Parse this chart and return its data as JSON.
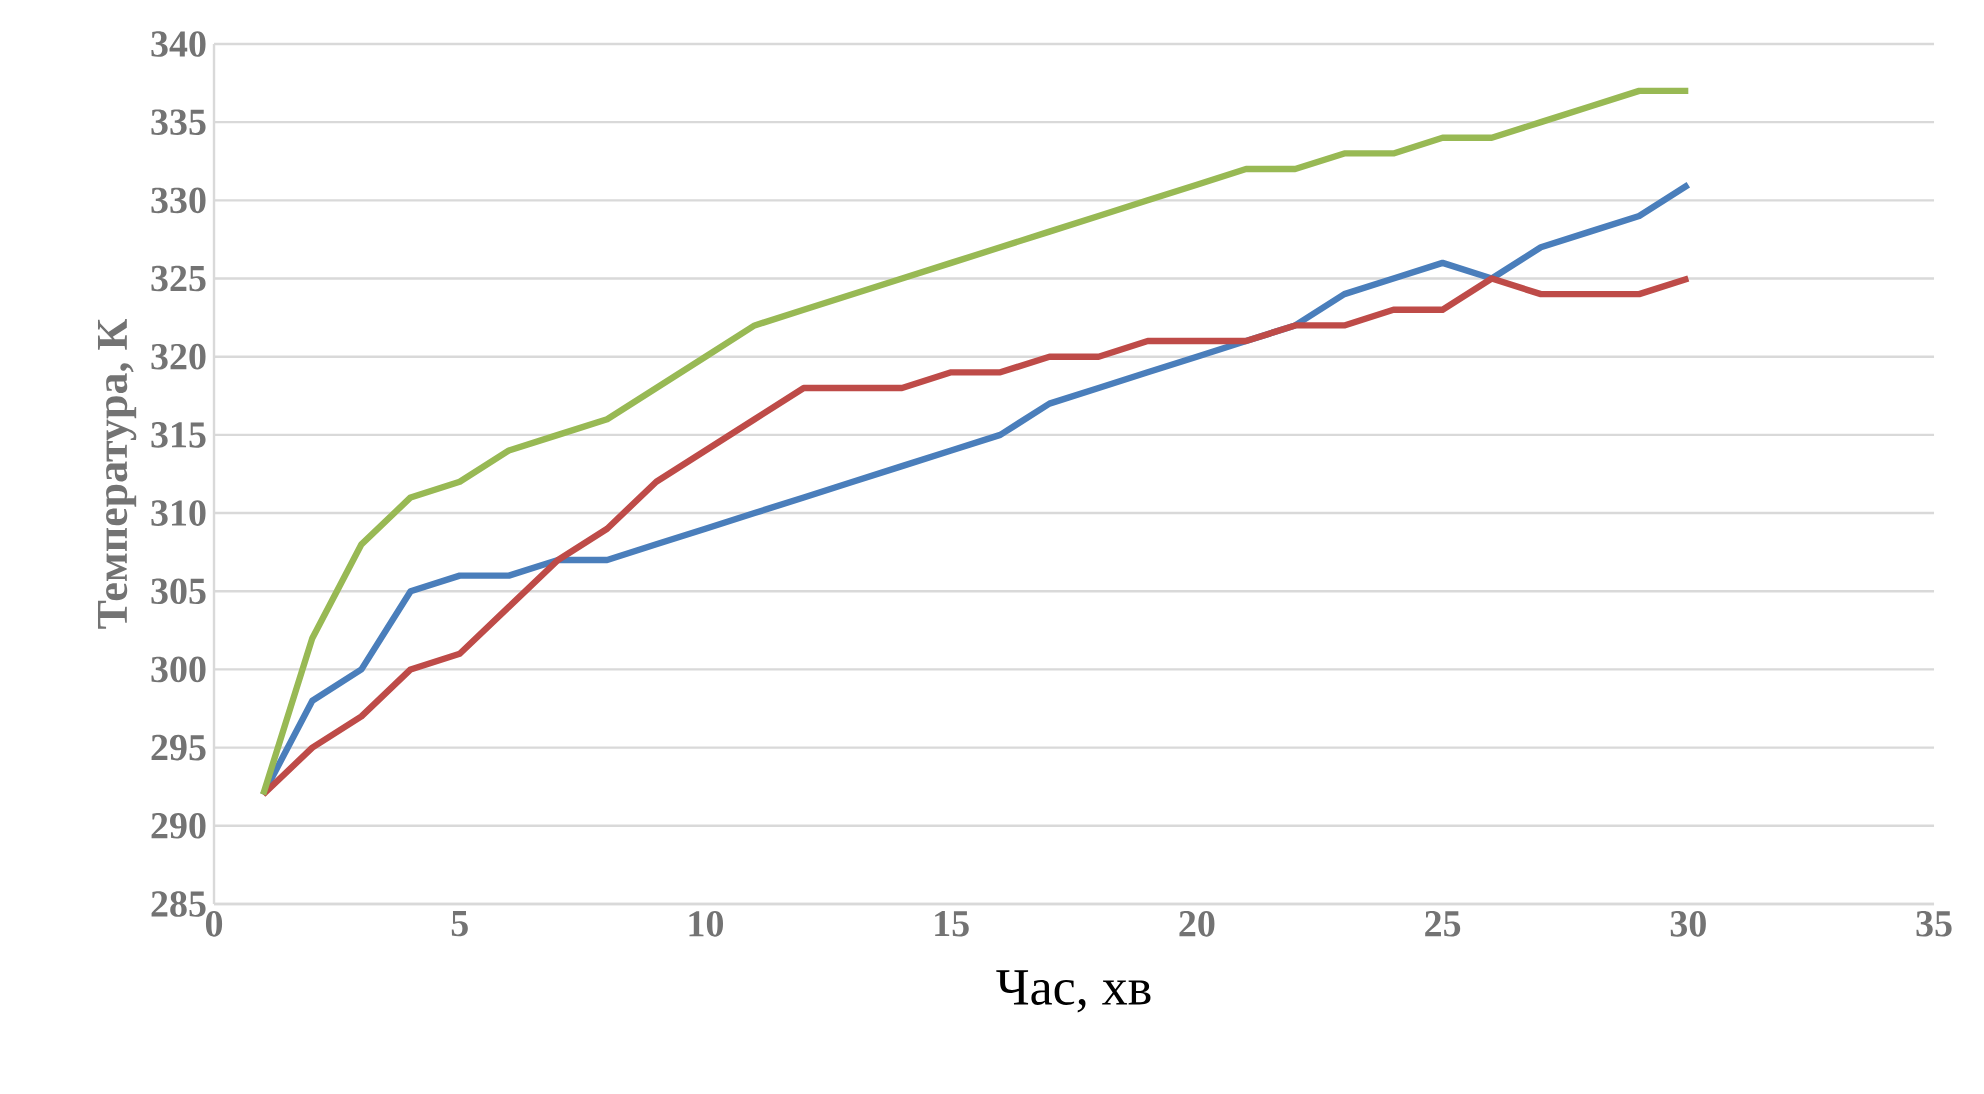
{
  "chart_data": {
    "type": "line",
    "xlabel": "Час, хв",
    "ylabel": "Температура, К",
    "x": [
      1,
      2,
      3,
      4,
      5,
      6,
      7,
      8,
      9,
      10,
      11,
      12,
      13,
      14,
      15,
      16,
      17,
      18,
      19,
      20,
      21,
      22,
      23,
      24,
      25,
      26,
      27,
      28,
      29,
      30
    ],
    "series": [
      {
        "color": "#4a7ebb",
        "values": [
          292,
          298,
          300,
          305,
          306,
          306,
          307,
          307,
          308,
          309,
          310,
          311,
          312,
          313,
          314,
          315,
          317,
          318,
          319,
          320,
          321,
          322,
          324,
          325,
          326,
          325,
          327,
          328,
          329,
          331
        ]
      },
      {
        "color": "#be4b48",
        "values": [
          292,
          295,
          297,
          300,
          301,
          304,
          307,
          309,
          312,
          314,
          316,
          318,
          318,
          318,
          319,
          319,
          320,
          320,
          321,
          321,
          321,
          322,
          322,
          323,
          323,
          325,
          324,
          324,
          324,
          325
        ]
      },
      {
        "color": "#98b954",
        "values": [
          292,
          302,
          308,
          311,
          312,
          314,
          315,
          316,
          318,
          320,
          322,
          323,
          324,
          325,
          326,
          327,
          328,
          329,
          330,
          331,
          332,
          332,
          333,
          333,
          334,
          334,
          335,
          336,
          337,
          337
        ]
      }
    ],
    "xlim": [
      0,
      35
    ],
    "xticks": [
      0,
      5,
      10,
      15,
      20,
      25,
      30,
      35
    ],
    "ylim": [
      285,
      340
    ],
    "yticks": [
      285,
      290,
      295,
      300,
      305,
      310,
      315,
      320,
      325,
      330,
      335,
      340
    ],
    "grid": "y",
    "marker": "none",
    "line_style": "solid"
  }
}
